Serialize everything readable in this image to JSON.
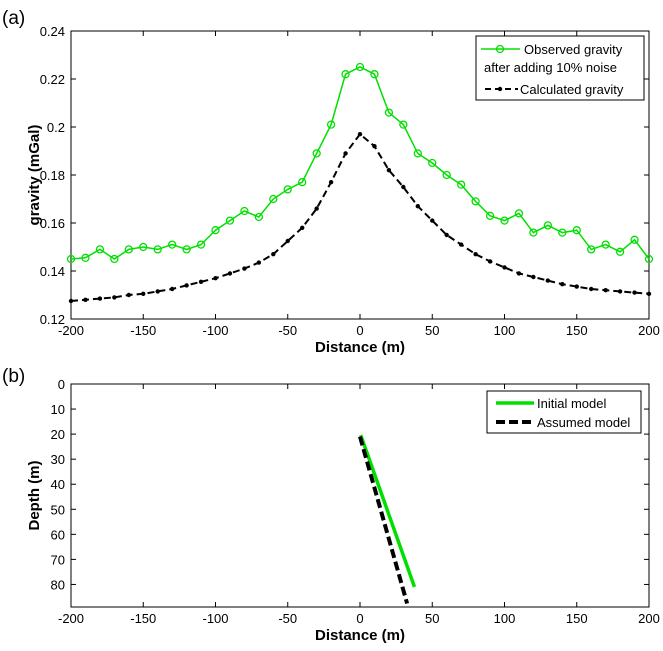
{
  "chart_data": [
    {
      "panel_label": "(a)",
      "type": "line",
      "xlabel": "Distance (m)",
      "ylabel": "gravity (mGal)",
      "xlim": [
        -200,
        200
      ],
      "ylim": [
        0.12,
        0.24
      ],
      "xticks": [
        "-200",
        "-150",
        "-100",
        "-50",
        "0",
        "50",
        "100",
        "150",
        "200"
      ],
      "yticks": [
        "0.12",
        "0.14",
        "0.16",
        "0.18",
        "0.2",
        "0.22",
        "0.24"
      ],
      "legend_position": "top-right",
      "x": [
        -200,
        -190,
        -180,
        -170,
        -160,
        -150,
        -140,
        -130,
        -120,
        -110,
        -100,
        -90,
        -80,
        -70,
        -60,
        -50,
        -40,
        -30,
        -20,
        -10,
        0,
        10,
        20,
        30,
        40,
        50,
        60,
        70,
        80,
        90,
        100,
        110,
        120,
        130,
        140,
        150,
        160,
        170,
        180,
        190,
        200
      ],
      "series": [
        {
          "name": "Observed gravity",
          "name_line2": "after adding 10% noise",
          "color": "#00e000",
          "marker": "circle",
          "values": [
            0.145,
            0.1455,
            0.149,
            0.145,
            0.149,
            0.15,
            0.149,
            0.151,
            0.149,
            0.151,
            0.157,
            0.161,
            0.165,
            0.1625,
            0.17,
            0.174,
            0.177,
            0.189,
            0.201,
            0.222,
            0.225,
            0.222,
            0.206,
            0.201,
            0.189,
            0.185,
            0.18,
            0.176,
            0.169,
            0.163,
            0.161,
            0.164,
            0.156,
            0.159,
            0.156,
            0.157,
            0.149,
            0.151,
            0.148,
            0.153,
            0.145
          ]
        },
        {
          "name": "Calculated gravity",
          "color": "#000000",
          "marker": "dot",
          "dash": true,
          "values": [
            0.1275,
            0.128,
            0.1285,
            0.129,
            0.13,
            0.1305,
            0.1315,
            0.1325,
            0.134,
            0.1355,
            0.137,
            0.139,
            0.141,
            0.1435,
            0.147,
            0.1525,
            0.158,
            0.166,
            0.177,
            0.189,
            0.197,
            0.192,
            0.182,
            0.175,
            0.167,
            0.161,
            0.155,
            0.151,
            0.147,
            0.144,
            0.1415,
            0.139,
            0.1375,
            0.136,
            0.1345,
            0.1335,
            0.1325,
            0.132,
            0.1315,
            0.131,
            0.1305
          ]
        }
      ]
    },
    {
      "panel_label": "(b)",
      "type": "line",
      "xlabel": "Distance (m)",
      "ylabel": "Depth (m)",
      "xlim": [
        -200,
        200
      ],
      "ylim": [
        0,
        89
      ],
      "y_reversed": true,
      "xticks": [
        "-200",
        "-150",
        "-100",
        "-50",
        "0",
        "50",
        "100",
        "150",
        "200"
      ],
      "yticks": [
        "0",
        "10",
        "20",
        "30",
        "40",
        "50",
        "60",
        "70",
        "80"
      ],
      "legend_position": "top-right",
      "series": [
        {
          "name": "Initial model",
          "color": "#00e000",
          "points": [
            [
              0.5,
              20.4
            ],
            [
              37.7,
              81
            ]
          ]
        },
        {
          "name": "Assumed model",
          "color": "#000000",
          "dash": true,
          "points": [
            [
              0,
              21
            ],
            [
              32.6,
              87.6
            ]
          ]
        }
      ]
    }
  ]
}
